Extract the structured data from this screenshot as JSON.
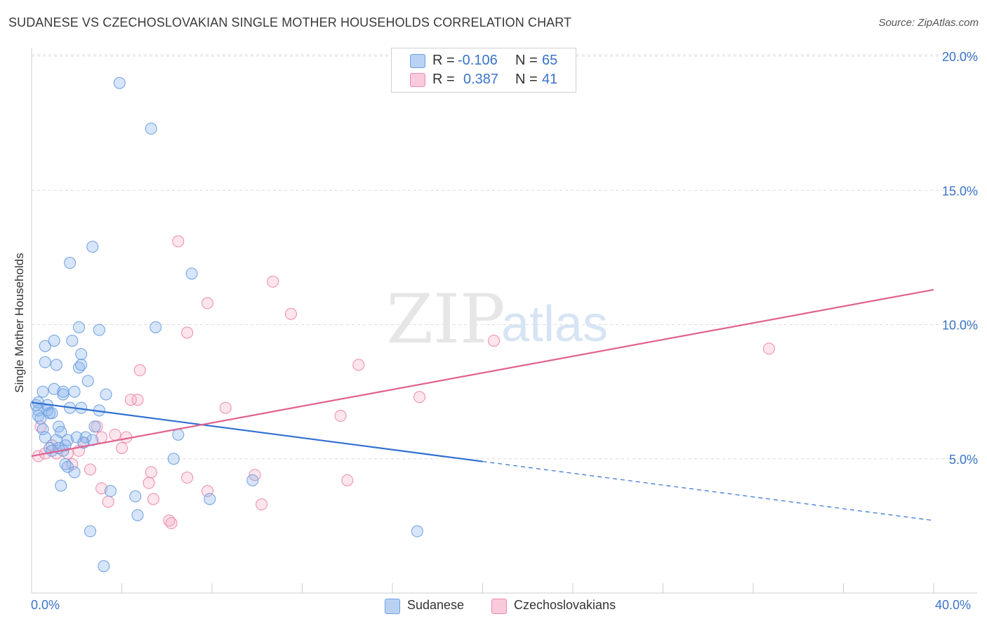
{
  "title": "SUDANESE VS CZECHOSLOVAKIAN SINGLE MOTHER HOUSEHOLDS CORRELATION CHART",
  "source": "Source: ZipAtlas.com",
  "watermark": {
    "zip": "ZIP",
    "atlas": "atlas"
  },
  "legend": {
    "rows": [
      {
        "r_label": "R =",
        "r_value": "-0.106",
        "n_label": "N =",
        "n_value": "65"
      },
      {
        "r_label": "R =",
        "r_value": "0.387",
        "n_label": "N =",
        "n_value": "41"
      }
    ]
  },
  "bottom_legend": {
    "sudanese": "Sudanese",
    "czech": "Czechoslovakians"
  },
  "x_tick_labels": {
    "min": "0.0%",
    "max": "40.0%"
  },
  "colors": {
    "blue": "#6f9fe0",
    "blue_fill": "rgba(138,180,238,0.35)",
    "blue_line": "#2f6fd0",
    "pink": "#ee8aaa",
    "pink_fill": "rgba(246,168,192,0.30)",
    "pink_line": "#e0628e",
    "accent_text": "#3a73c9"
  },
  "chart_data": {
    "type": "scatter",
    "title": "SUDANESE VS CZECHOSLOVAKIAN SINGLE MOTHER HOUSEHOLDS CORRELATION CHART",
    "xlabel": "",
    "ylabel": "Single Mother Households",
    "xlim": [
      0,
      40
    ],
    "ylim": [
      0,
      20
    ],
    "y_ticks": [
      {
        "value": 5,
        "label": "5.0%"
      },
      {
        "value": 10,
        "label": "10.0%"
      },
      {
        "value": 15,
        "label": "15.0%"
      },
      {
        "value": 20,
        "label": "20.0%"
      }
    ],
    "x_tick_values": [
      0,
      4,
      8,
      12,
      16,
      20,
      24,
      28,
      32,
      36,
      40
    ],
    "series": [
      {
        "name": "Sudanese",
        "color": "blue",
        "R": -0.106,
        "N": 65,
        "trend": {
          "x0": 0,
          "y0": 7.1,
          "x1": 20,
          "y1": 4.9,
          "dash_to": 40,
          "dash_y": 2.7
        },
        "points": [
          [
            3.9,
            19.0
          ],
          [
            5.3,
            17.3
          ],
          [
            2.7,
            12.9
          ],
          [
            1.7,
            12.3
          ],
          [
            7.1,
            11.9
          ],
          [
            5.5,
            9.9
          ],
          [
            2.1,
            9.9
          ],
          [
            3.0,
            9.8
          ],
          [
            1.8,
            9.4
          ],
          [
            0.6,
            9.2
          ],
          [
            1.0,
            9.4
          ],
          [
            2.2,
            8.9
          ],
          [
            0.6,
            8.6
          ],
          [
            1.1,
            8.5
          ],
          [
            2.1,
            8.4
          ],
          [
            2.2,
            8.5
          ],
          [
            2.5,
            7.9
          ],
          [
            0.5,
            7.5
          ],
          [
            1.9,
            7.5
          ],
          [
            1.4,
            7.4
          ],
          [
            3.3,
            7.4
          ],
          [
            1.0,
            7.6
          ],
          [
            1.4,
            7.5
          ],
          [
            0.2,
            7.0
          ],
          [
            0.7,
            7.0
          ],
          [
            0.3,
            6.8
          ],
          [
            0.7,
            6.8
          ],
          [
            1.7,
            6.9
          ],
          [
            2.2,
            6.9
          ],
          [
            3.0,
            6.8
          ],
          [
            0.3,
            6.6
          ],
          [
            0.8,
            6.7
          ],
          [
            0.4,
            6.5
          ],
          [
            0.5,
            6.1
          ],
          [
            1.2,
            6.2
          ],
          [
            1.3,
            6.0
          ],
          [
            2.8,
            6.2
          ],
          [
            6.5,
            5.9
          ],
          [
            1.1,
            5.7
          ],
          [
            1.6,
            5.7
          ],
          [
            2.0,
            5.8
          ],
          [
            2.4,
            5.8
          ],
          [
            2.7,
            5.7
          ],
          [
            0.6,
            5.8
          ],
          [
            1.5,
            5.5
          ],
          [
            0.8,
            5.4
          ],
          [
            1.2,
            5.4
          ],
          [
            0.9,
            5.3
          ],
          [
            6.3,
            5.0
          ],
          [
            1.5,
            4.8
          ],
          [
            1.6,
            4.7
          ],
          [
            1.9,
            4.5
          ],
          [
            1.3,
            4.0
          ],
          [
            9.8,
            4.2
          ],
          [
            3.5,
            3.8
          ],
          [
            4.6,
            3.6
          ],
          [
            7.9,
            3.5
          ],
          [
            4.7,
            2.9
          ],
          [
            2.6,
            2.3
          ],
          [
            17.1,
            2.3
          ],
          [
            3.2,
            1.0
          ],
          [
            0.3,
            7.1
          ],
          [
            0.9,
            6.7
          ],
          [
            1.4,
            5.3
          ],
          [
            2.3,
            5.6
          ]
        ]
      },
      {
        "name": "Czechoslovakians",
        "color": "pink",
        "R": 0.387,
        "N": 41,
        "trend": {
          "x0": 0,
          "y0": 5.1,
          "x1": 40,
          "y1": 11.3
        },
        "points": [
          [
            6.5,
            13.1
          ],
          [
            10.7,
            11.6
          ],
          [
            7.8,
            10.8
          ],
          [
            11.5,
            10.4
          ],
          [
            6.9,
            9.7
          ],
          [
            20.5,
            9.4
          ],
          [
            32.7,
            9.1
          ],
          [
            14.5,
            8.5
          ],
          [
            4.8,
            8.3
          ],
          [
            17.2,
            7.3
          ],
          [
            4.4,
            7.2
          ],
          [
            4.7,
            7.2
          ],
          [
            8.6,
            6.9
          ],
          [
            13.7,
            6.6
          ],
          [
            0.4,
            6.2
          ],
          [
            2.9,
            6.2
          ],
          [
            3.7,
            5.9
          ],
          [
            4.2,
            5.8
          ],
          [
            2.3,
            5.6
          ],
          [
            0.3,
            5.1
          ],
          [
            0.6,
            5.2
          ],
          [
            1.1,
            5.2
          ],
          [
            1.6,
            5.2
          ],
          [
            2.1,
            5.3
          ],
          [
            3.1,
            5.8
          ],
          [
            4.0,
            5.4
          ],
          [
            1.8,
            4.8
          ],
          [
            2.6,
            4.6
          ],
          [
            5.3,
            4.5
          ],
          [
            6.9,
            4.3
          ],
          [
            9.9,
            4.4
          ],
          [
            14.0,
            4.2
          ],
          [
            5.2,
            4.1
          ],
          [
            3.1,
            3.9
          ],
          [
            7.8,
            3.8
          ],
          [
            3.4,
            3.4
          ],
          [
            5.4,
            3.5
          ],
          [
            10.2,
            3.3
          ],
          [
            6.1,
            2.7
          ],
          [
            6.2,
            2.6
          ],
          [
            0.9,
            5.5
          ]
        ]
      }
    ]
  }
}
